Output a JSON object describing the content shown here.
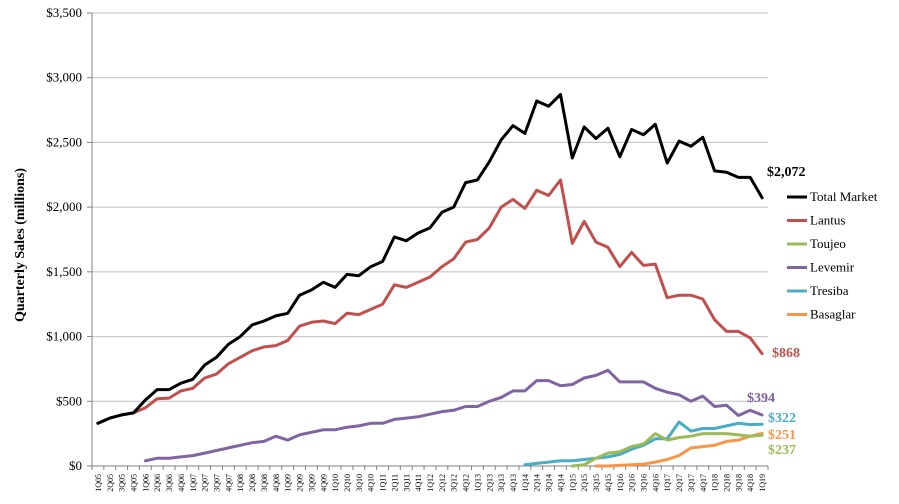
{
  "chart_data": {
    "type": "line",
    "ylabel": "Quarterly Sales (millions)",
    "xlabel": "",
    "ylim": [
      0,
      3500
    ],
    "yticks": [
      0,
      500,
      1000,
      1500,
      2000,
      2500,
      3000,
      3500
    ],
    "ytick_labels": [
      "$0",
      "$500",
      "$1,000",
      "$1,500",
      "$2,000",
      "$2,500",
      "$3,000",
      "$3,500"
    ],
    "grid": "horizontal",
    "legend_position": "right",
    "x": [
      "1Q05",
      "2Q05",
      "3Q05",
      "4Q05",
      "1Q06",
      "2Q06",
      "3Q06",
      "4Q06",
      "1Q07",
      "2Q07",
      "3Q07",
      "4Q07",
      "1Q08",
      "2Q08",
      "3Q08",
      "4Q08",
      "1Q09",
      "2Q09",
      "3Q09",
      "4Q09",
      "1Q10",
      "2Q10",
      "3Q10",
      "4Q10",
      "1Q11",
      "2Q11",
      "3Q11",
      "4Q11",
      "1Q12",
      "2Q12",
      "3Q12",
      "4Q12",
      "1Q13",
      "2Q13",
      "3Q13",
      "4Q13",
      "1Q14",
      "2Q14",
      "3Q14",
      "4Q14",
      "1Q15",
      "2Q15",
      "3Q15",
      "4Q15",
      "1Q16",
      "2Q16",
      "3Q16",
      "4Q16",
      "1Q17",
      "2Q17",
      "3Q17",
      "4Q17",
      "1Q18",
      "2Q18",
      "3Q18",
      "4Q18",
      "1Q19"
    ],
    "x_visible_labels": [
      "1Q05",
      "2Q05",
      "3Q05",
      "4Q05",
      "1Q06",
      "2Q06",
      "3Q06",
      "4Q06",
      "1Q07",
      "2Q07",
      "3Q07",
      "4Q07",
      "1Q08",
      "2Q08",
      "3Q08",
      "4Q08",
      "1Q09",
      "2Q09",
      "3Q09",
      "4Q09",
      "1Q10",
      "2Q10",
      "3Q10",
      "4Q10",
      "1Q11",
      "2Q11",
      "3Q11",
      "4Q11",
      "1Q12",
      "2Q12",
      "3Q12",
      "4Q12",
      "1Q13",
      "2Q13",
      "3Q13",
      "4Q13",
      "1Q14",
      "2Q14",
      "3Q14",
      "4Q14",
      "1Q15",
      "2Q15",
      "3Q15",
      "4Q15",
      "1Q16",
      "2Q16",
      "3Q16",
      "4Q16",
      "1Q17",
      "2Q17",
      "3Q17",
      "4Q17",
      "1Q18",
      "2Q18",
      "3Q18",
      "4Q18",
      "1Q19"
    ],
    "series": [
      {
        "name": "Total Market",
        "color": "#000000",
        "values": [
          330,
          370,
          395,
          410,
          510,
          590,
          590,
          640,
          670,
          780,
          840,
          940,
          1000,
          1090,
          1120,
          1160,
          1180,
          1320,
          1360,
          1420,
          1380,
          1480,
          1470,
          1540,
          1580,
          1770,
          1740,
          1800,
          1840,
          1960,
          2000,
          2190,
          2210,
          2350,
          2520,
          2630,
          2570,
          2820,
          2780,
          2870,
          2380,
          2620,
          2530,
          2610,
          2390,
          2600,
          2560,
          2640,
          2340,
          2510,
          2470,
          2540,
          2280,
          2270,
          2230,
          2230,
          2072
        ],
        "end_label": "$2,072",
        "end_label_color": "#000000"
      },
      {
        "name": "Lantus",
        "color": "#C0504D",
        "values": [
          330,
          370,
          395,
          410,
          450,
          520,
          525,
          580,
          600,
          680,
          710,
          790,
          840,
          890,
          920,
          930,
          970,
          1080,
          1110,
          1120,
          1100,
          1180,
          1170,
          1210,
          1250,
          1400,
          1380,
          1420,
          1460,
          1540,
          1600,
          1730,
          1750,
          1840,
          2000,
          2060,
          1990,
          2130,
          2090,
          2210,
          1720,
          1890,
          1730,
          1690,
          1540,
          1650,
          1550,
          1560,
          1300,
          1320,
          1320,
          1290,
          1130,
          1040,
          1040,
          990,
          868
        ],
        "end_label": "$868",
        "end_label_color": "#C0504D"
      },
      {
        "name": "Toujeo",
        "color": "#9BBB59",
        "values": [
          null,
          null,
          null,
          null,
          null,
          null,
          null,
          null,
          null,
          null,
          null,
          null,
          null,
          null,
          null,
          null,
          null,
          null,
          null,
          null,
          null,
          null,
          null,
          null,
          null,
          null,
          null,
          null,
          null,
          null,
          null,
          null,
          null,
          null,
          null,
          null,
          null,
          null,
          null,
          null,
          null,
          null,
          null,
          null,
          null,
          null,
          null,
          null,
          null,
          null,
          null,
          null,
          null,
          null,
          null,
          null,
          237
        ],
        "values_full": [
          null,
          null,
          null,
          null,
          null,
          null,
          null,
          null,
          null,
          null,
          null,
          null,
          null,
          null,
          null,
          null,
          null,
          null,
          null,
          null,
          null,
          null,
          null,
          null,
          null,
          null,
          null,
          null,
          null,
          null,
          null,
          null,
          null,
          null,
          null,
          null,
          null,
          null,
          null,
          null,
          0,
          10,
          60,
          100,
          110,
          150,
          170,
          250,
          200,
          220,
          230,
          250,
          250,
          250,
          240,
          230,
          237
        ],
        "end_label": "$237",
        "end_label_color": "#9BBB59"
      },
      {
        "name": "Levemir",
        "color": "#8064A2",
        "values": [
          null,
          null,
          null,
          null,
          40,
          60,
          60,
          70,
          80,
          100,
          120,
          140,
          160,
          180,
          190,
          230,
          200,
          240,
          260,
          280,
          280,
          300,
          310,
          330,
          330,
          360,
          370,
          380,
          400,
          420,
          430,
          460,
          460,
          500,
          530,
          580,
          580,
          660,
          660,
          620,
          630,
          680,
          700,
          740,
          650,
          650,
          650,
          600,
          570,
          550,
          500,
          540,
          460,
          470,
          390,
          430,
          394
        ],
        "end_label": "$394",
        "end_label_color": "#8064A2"
      },
      {
        "name": "Tresiba",
        "color": "#4BACC6",
        "values": [
          null,
          null,
          null,
          null,
          null,
          null,
          null,
          null,
          null,
          null,
          null,
          null,
          null,
          null,
          null,
          null,
          null,
          null,
          null,
          null,
          null,
          null,
          null,
          null,
          null,
          null,
          null,
          null,
          null,
          null,
          null,
          null,
          null,
          null,
          null,
          null,
          10,
          20,
          30,
          40,
          40,
          50,
          60,
          70,
          90,
          130,
          160,
          210,
          210,
          340,
          270,
          290,
          290,
          310,
          330,
          320,
          322
        ],
        "end_label": "$322",
        "end_label_color": "#4BACC6"
      },
      {
        "name": "Basaglar",
        "color": "#F79646",
        "values": [
          null,
          null,
          null,
          null,
          null,
          null,
          null,
          null,
          null,
          null,
          null,
          null,
          null,
          null,
          null,
          null,
          null,
          null,
          null,
          null,
          null,
          null,
          null,
          null,
          null,
          null,
          null,
          null,
          null,
          null,
          null,
          null,
          null,
          null,
          null,
          null,
          null,
          null,
          null,
          null,
          null,
          null,
          0,
          0,
          5,
          10,
          15,
          30,
          50,
          80,
          140,
          150,
          160,
          190,
          200,
          230,
          251
        ],
        "end_label": "$251",
        "end_label_color": "#F79646"
      }
    ]
  }
}
